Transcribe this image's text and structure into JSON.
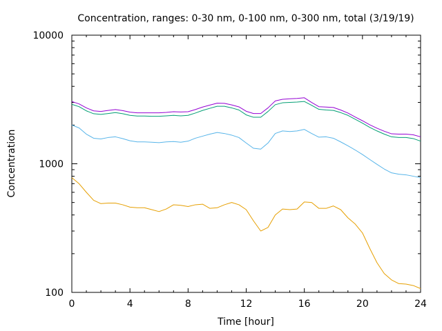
{
  "chart_data": {
    "type": "line",
    "title": "Concentration, ranges: 0-30 nm, 0-100 nm, 0-300 nm, total (3/19/19)",
    "xlabel": "Time [hour]",
    "ylabel": "Concentration",
    "xlim": [
      0,
      24
    ],
    "ylim": [
      100,
      10000
    ],
    "yscale": "log",
    "grid": false,
    "legend": "none",
    "x_ticks": [
      "0",
      "4",
      "8",
      "12",
      "16",
      "20",
      "24"
    ],
    "y_ticks": [
      "100",
      "1000",
      "10000"
    ],
    "x": [
      0,
      0.5,
      1,
      1.5,
      2,
      2.5,
      3,
      3.5,
      4,
      4.5,
      5,
      5.5,
      6,
      6.5,
      7,
      7.5,
      8,
      8.5,
      9,
      9.5,
      10,
      10.5,
      11,
      11.5,
      12,
      12.5,
      13,
      13.5,
      14,
      14.5,
      15,
      15.5,
      16,
      16.5,
      17,
      17.5,
      18,
      18.5,
      19,
      19.5,
      20,
      20.5,
      21,
      21.5,
      22,
      22.5,
      23,
      23.5,
      24
    ],
    "series": [
      {
        "color": "#e69f00",
        "values": [
          780,
          700,
          600,
          520,
          490,
          495,
          495,
          480,
          460,
          455,
          455,
          440,
          425,
          445,
          480,
          475,
          465,
          480,
          485,
          450,
          455,
          480,
          500,
          480,
          440,
          360,
          300,
          320,
          400,
          445,
          440,
          445,
          505,
          500,
          450,
          450,
          470,
          440,
          380,
          340,
          290,
          220,
          170,
          140,
          125,
          117,
          116,
          113,
          107
        ]
      },
      {
        "color": "#56b4e9",
        "values": [
          2000,
          1900,
          1700,
          1580,
          1560,
          1600,
          1620,
          1570,
          1510,
          1480,
          1480,
          1470,
          1460,
          1480,
          1490,
          1470,
          1500,
          1580,
          1640,
          1700,
          1750,
          1720,
          1670,
          1600,
          1450,
          1320,
          1300,
          1450,
          1720,
          1800,
          1780,
          1800,
          1850,
          1720,
          1610,
          1620,
          1580,
          1480,
          1380,
          1280,
          1180,
          1080,
          990,
          910,
          850,
          830,
          820,
          800,
          780
        ]
      },
      {
        "color": "#009e73",
        "values": [
          2900,
          2780,
          2580,
          2450,
          2420,
          2460,
          2500,
          2450,
          2380,
          2350,
          2350,
          2340,
          2340,
          2360,
          2380,
          2360,
          2380,
          2480,
          2600,
          2700,
          2800,
          2800,
          2720,
          2620,
          2400,
          2300,
          2300,
          2550,
          2880,
          2980,
          3000,
          3020,
          3050,
          2850,
          2650,
          2620,
          2600,
          2500,
          2380,
          2220,
          2070,
          1920,
          1800,
          1700,
          1620,
          1600,
          1600,
          1570,
          1500
        ]
      },
      {
        "color": "#9400d3",
        "values": [
          3050,
          2920,
          2720,
          2580,
          2550,
          2600,
          2640,
          2590,
          2520,
          2490,
          2490,
          2490,
          2490,
          2510,
          2540,
          2530,
          2540,
          2640,
          2760,
          2860,
          2960,
          2950,
          2870,
          2770,
          2560,
          2460,
          2460,
          2720,
          3080,
          3170,
          3200,
          3220,
          3260,
          3000,
          2780,
          2760,
          2740,
          2620,
          2480,
          2310,
          2160,
          2010,
          1890,
          1790,
          1710,
          1700,
          1700,
          1680,
          1620
        ]
      }
    ]
  }
}
